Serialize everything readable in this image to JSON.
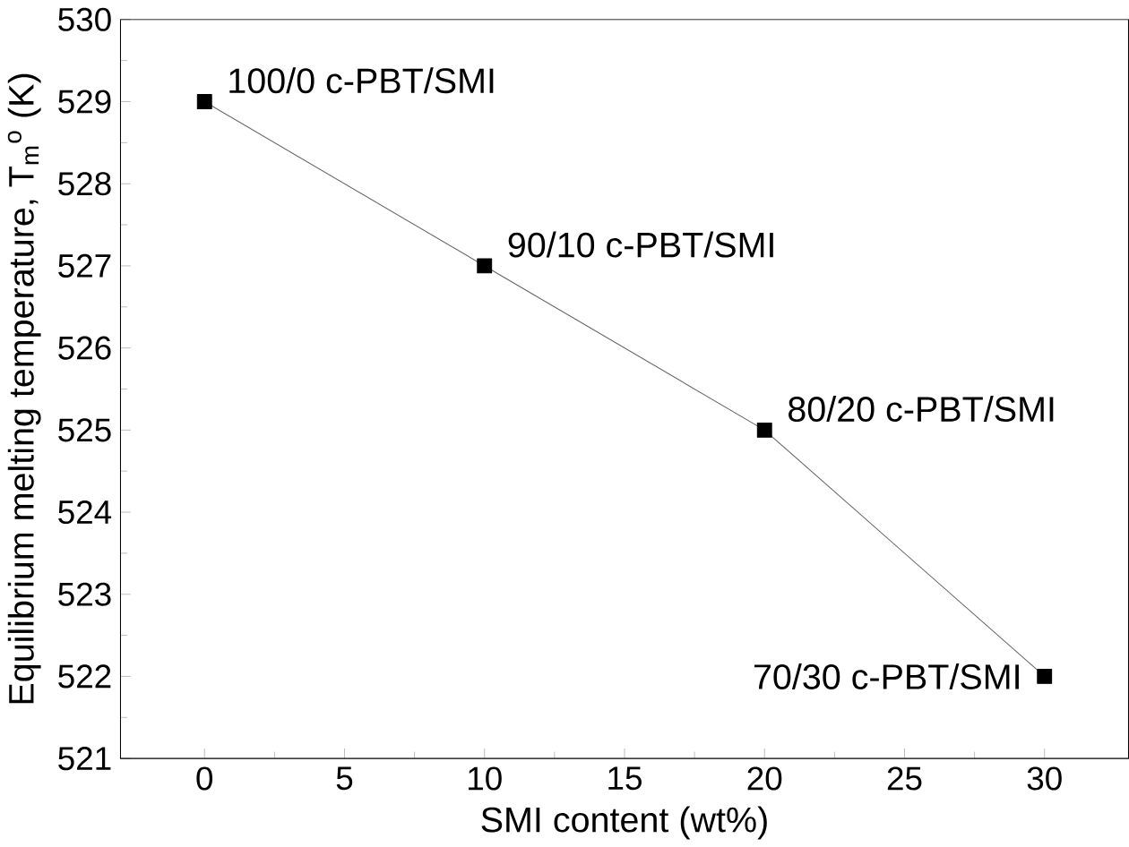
{
  "chart_data": {
    "type": "line",
    "xlabel": "SMI content (wt%)",
    "ylabel": "Equilibrium melting temperature, T$_{m}$$^{o}$ (K)",
    "x": [
      0,
      10,
      20,
      30
    ],
    "series": [
      {
        "color": "#000000",
        "values": [
          529,
          527,
          525,
          522
        ]
      }
    ],
    "xlim": [
      -3,
      33
    ],
    "xticks": [
      0,
      5,
      10,
      15,
      20,
      25,
      30
    ],
    "ylim": [
      521,
      530
    ],
    "yticks": [
      521,
      522,
      523,
      524,
      525,
      526,
      527,
      528,
      529,
      530
    ],
    "marker": "square",
    "line_style": "solid",
    "annotations": [
      {
        "text": "100/0 c-PBT/SMI",
        "x": 0,
        "y": 529
      },
      {
        "text": "90/10 c-PBT/SMI",
        "x": 10,
        "y": 527
      },
      {
        "text": "80/20 c-PBT/SMI",
        "x": 20,
        "y": 525
      },
      {
        "text": "70/30 c-PBT/SMI",
        "x": 30,
        "y": 522
      }
    ]
  }
}
